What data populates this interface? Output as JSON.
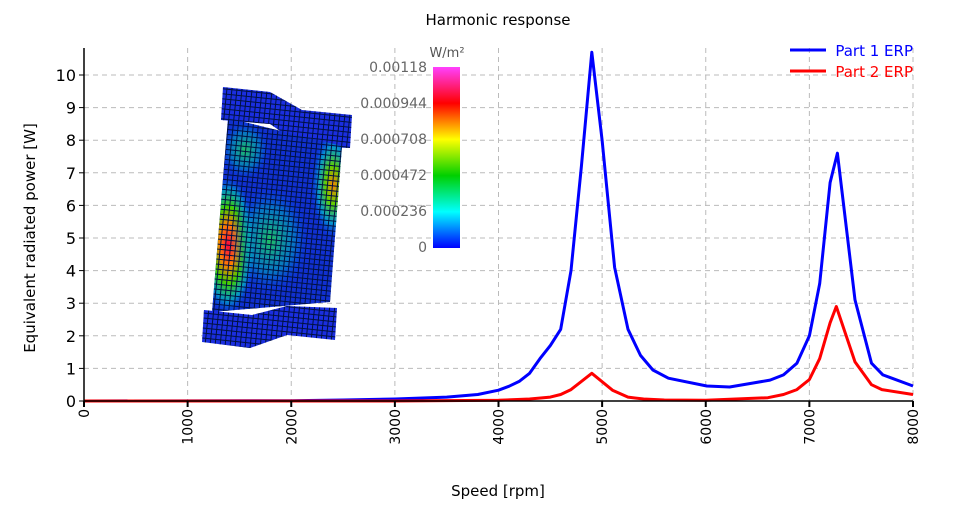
{
  "chart_data": {
    "type": "line",
    "title": "Harmonic response",
    "xlabel": "Speed [rpm]",
    "ylabel": "Equivalent radiated power [W]",
    "xlim": [
      0,
      8000
    ],
    "ylim": [
      0,
      10.8
    ],
    "xticks": [
      0,
      1000,
      2000,
      3000,
      4000,
      5000,
      6000,
      7000,
      8000
    ],
    "yticks": [
      0,
      1,
      2,
      3,
      4,
      5,
      6,
      7,
      8,
      9,
      10
    ],
    "grid": true,
    "legend_position": "top-right",
    "series": [
      {
        "name": "Part 1 ERP",
        "color": "#0000ff",
        "x": [
          0,
          2000,
          2500,
          3000,
          3500,
          3800,
          4000,
          4100,
          4200,
          4300,
          4400,
          4500,
          4600,
          4700,
          4800,
          4900,
          5000,
          5120,
          5250,
          5370,
          5490,
          5640,
          6010,
          6230,
          6620,
          6750,
          6880,
          7000,
          7100,
          7200,
          7270,
          7440,
          7600,
          7710,
          8000
        ],
        "y": [
          0,
          0.01,
          0.03,
          0.06,
          0.12,
          0.2,
          0.33,
          0.45,
          0.6,
          0.85,
          1.3,
          1.7,
          2.2,
          4.0,
          7.2,
          10.7,
          8.0,
          4.1,
          2.2,
          1.4,
          0.95,
          0.7,
          0.46,
          0.43,
          0.64,
          0.8,
          1.16,
          2.0,
          3.6,
          6.7,
          7.6,
          3.1,
          1.16,
          0.8,
          0.46
        ]
      },
      {
        "name": "Part 2 ERP",
        "color": "#ff0000",
        "x": [
          0,
          3000,
          4000,
          4300,
          4500,
          4600,
          4700,
          4900,
          5100,
          5250,
          5400,
          5600,
          6000,
          6600,
          6750,
          6880,
          7000,
          7100,
          7200,
          7260,
          7440,
          7600,
          7700,
          8000
        ],
        "y": [
          0,
          0.0,
          0.02,
          0.06,
          0.12,
          0.2,
          0.35,
          0.85,
          0.33,
          0.12,
          0.06,
          0.03,
          0.02,
          0.1,
          0.2,
          0.35,
          0.66,
          1.3,
          2.4,
          2.9,
          1.2,
          0.5,
          0.35,
          0.2
        ]
      }
    ],
    "inset": {
      "colorbar_unit": "W/m²",
      "colorbar_labels": [
        "0.00118",
        "0.000944",
        "0.000708",
        "0.000472",
        "0.000236",
        "0"
      ],
      "colormap": [
        "#ff00ff",
        "#ff0000",
        "#ffff00",
        "#00cc00",
        "#00ffff",
        "#0000ff"
      ]
    }
  }
}
